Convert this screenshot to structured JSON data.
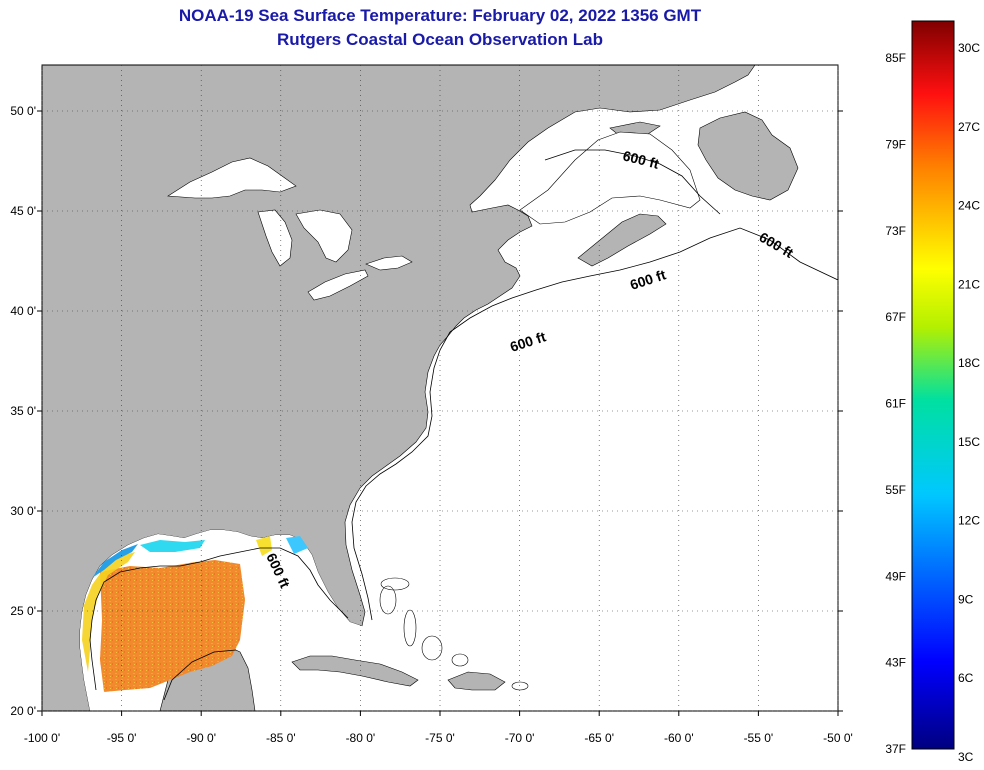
{
  "title": "NOAA-19 Sea Surface Temperature:  February 02, 2022 1356 GMT",
  "subtitle": "Rutgers Coastal Ocean Observation Lab",
  "colors": {
    "land": "#b4b4b4",
    "ocean": "#ffffff",
    "title": "#1a1aa8",
    "contour": "#000000",
    "sst_gulf": "#f0822a",
    "sst_shelf": "#f5d21e"
  },
  "map": {
    "lat_labels": [
      "50 0'",
      "45 0'",
      "40 0'",
      "35 0'",
      "30 0'",
      "25 0'",
      "20 0'"
    ],
    "lat_values": [
      50,
      45,
      40,
      35,
      30,
      25,
      20
    ],
    "lon_labels": [
      "-100 0'",
      "-95 0'",
      "-90 0'",
      "-85 0'",
      "-80 0'",
      "-75 0'",
      "-70 0'",
      "-65 0'",
      "-60 0'",
      "-55 0'",
      "-50 0'"
    ],
    "lon_values": [
      -100,
      -95,
      -90,
      -85,
      -80,
      -75,
      -70,
      -65,
      -60,
      -55,
      -50
    ],
    "contour_labels": [
      "600 ft",
      "600 ft",
      "600 ft",
      "600 ft",
      "600 ft"
    ]
  },
  "colorbar": {
    "fahrenheit_labels": [
      "85F",
      "79F",
      "73F",
      "67F",
      "61F",
      "55F",
      "49F",
      "43F",
      "37F"
    ],
    "celsius_labels": [
      "30C",
      "27C",
      "24C",
      "21C",
      "18C",
      "15C",
      "12C",
      "9C",
      "6C",
      "3C"
    ]
  }
}
